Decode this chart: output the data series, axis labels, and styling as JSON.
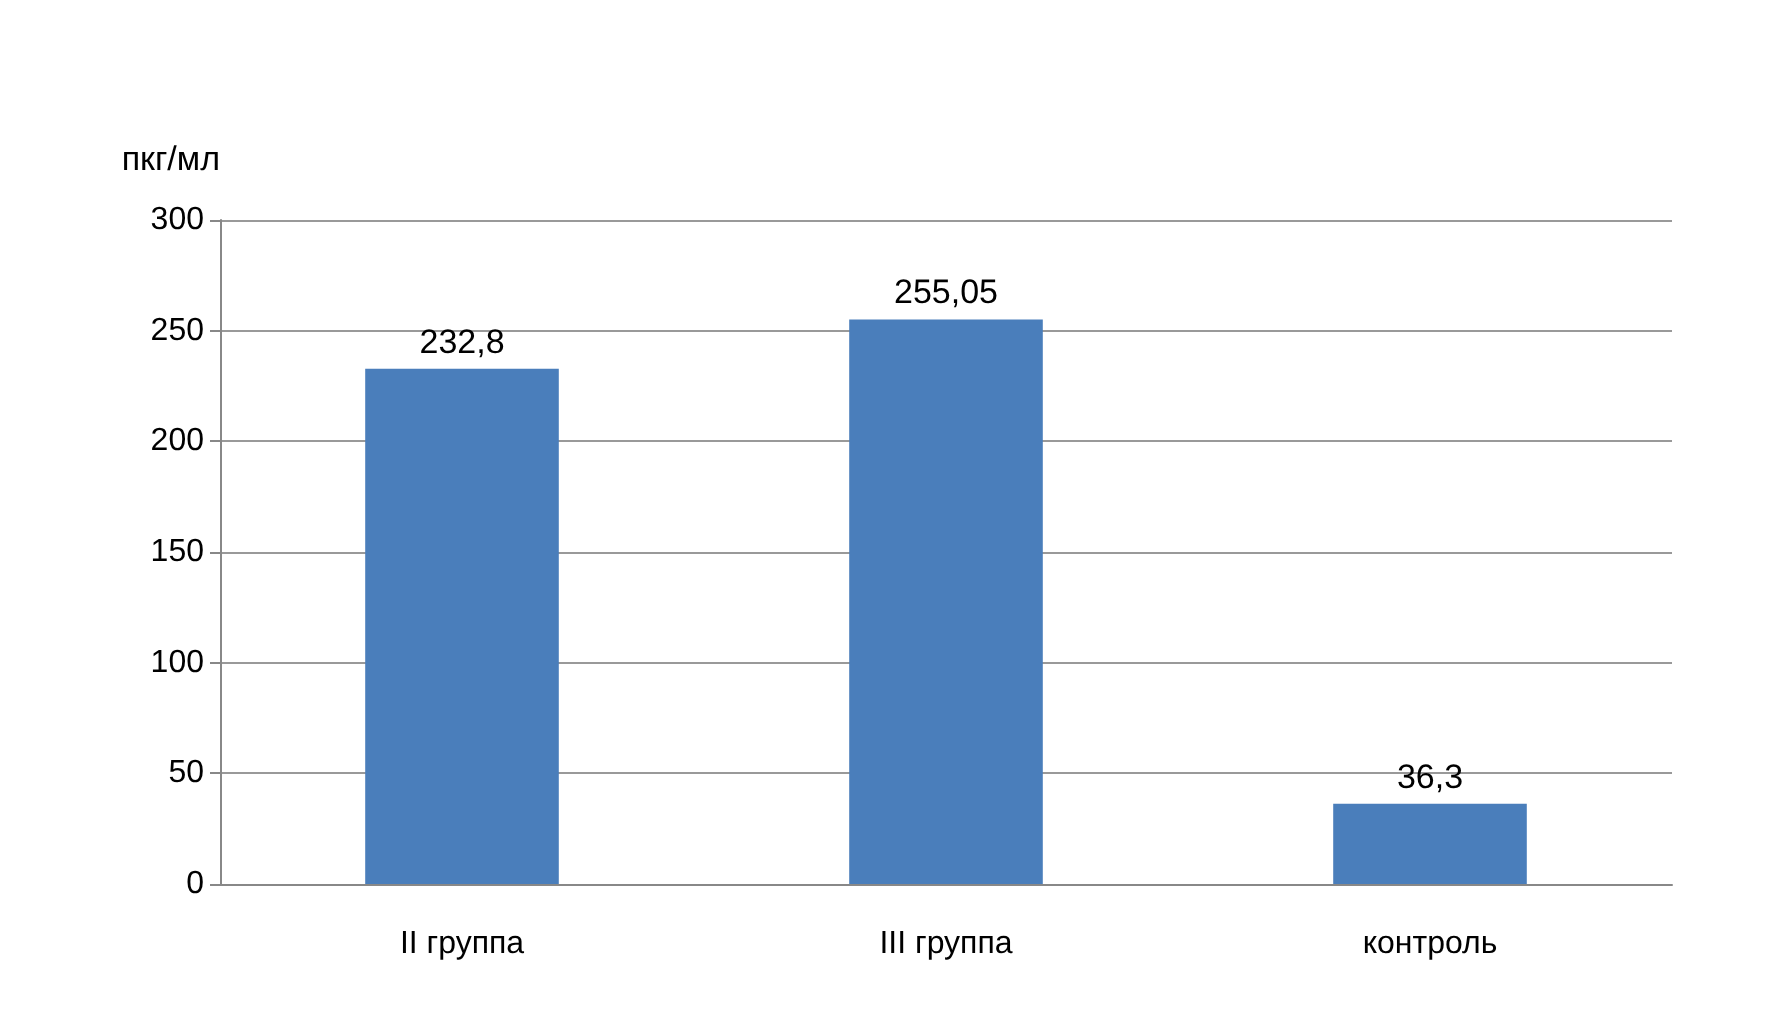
{
  "chart_data": {
    "type": "bar",
    "ylabel": "пкг/мл",
    "categories": [
      "II группа",
      "III группа",
      "контроль"
    ],
    "values": [
      232.8,
      255.05,
      36.3
    ],
    "color": "#4a7ebb",
    "value_labels": [
      "232,8",
      "255,05",
      "36,3"
    ],
    "ylim": [
      0,
      300
    ],
    "yticks": [
      0,
      50,
      100,
      150,
      200,
      250,
      300
    ],
    "grid": "y"
  }
}
